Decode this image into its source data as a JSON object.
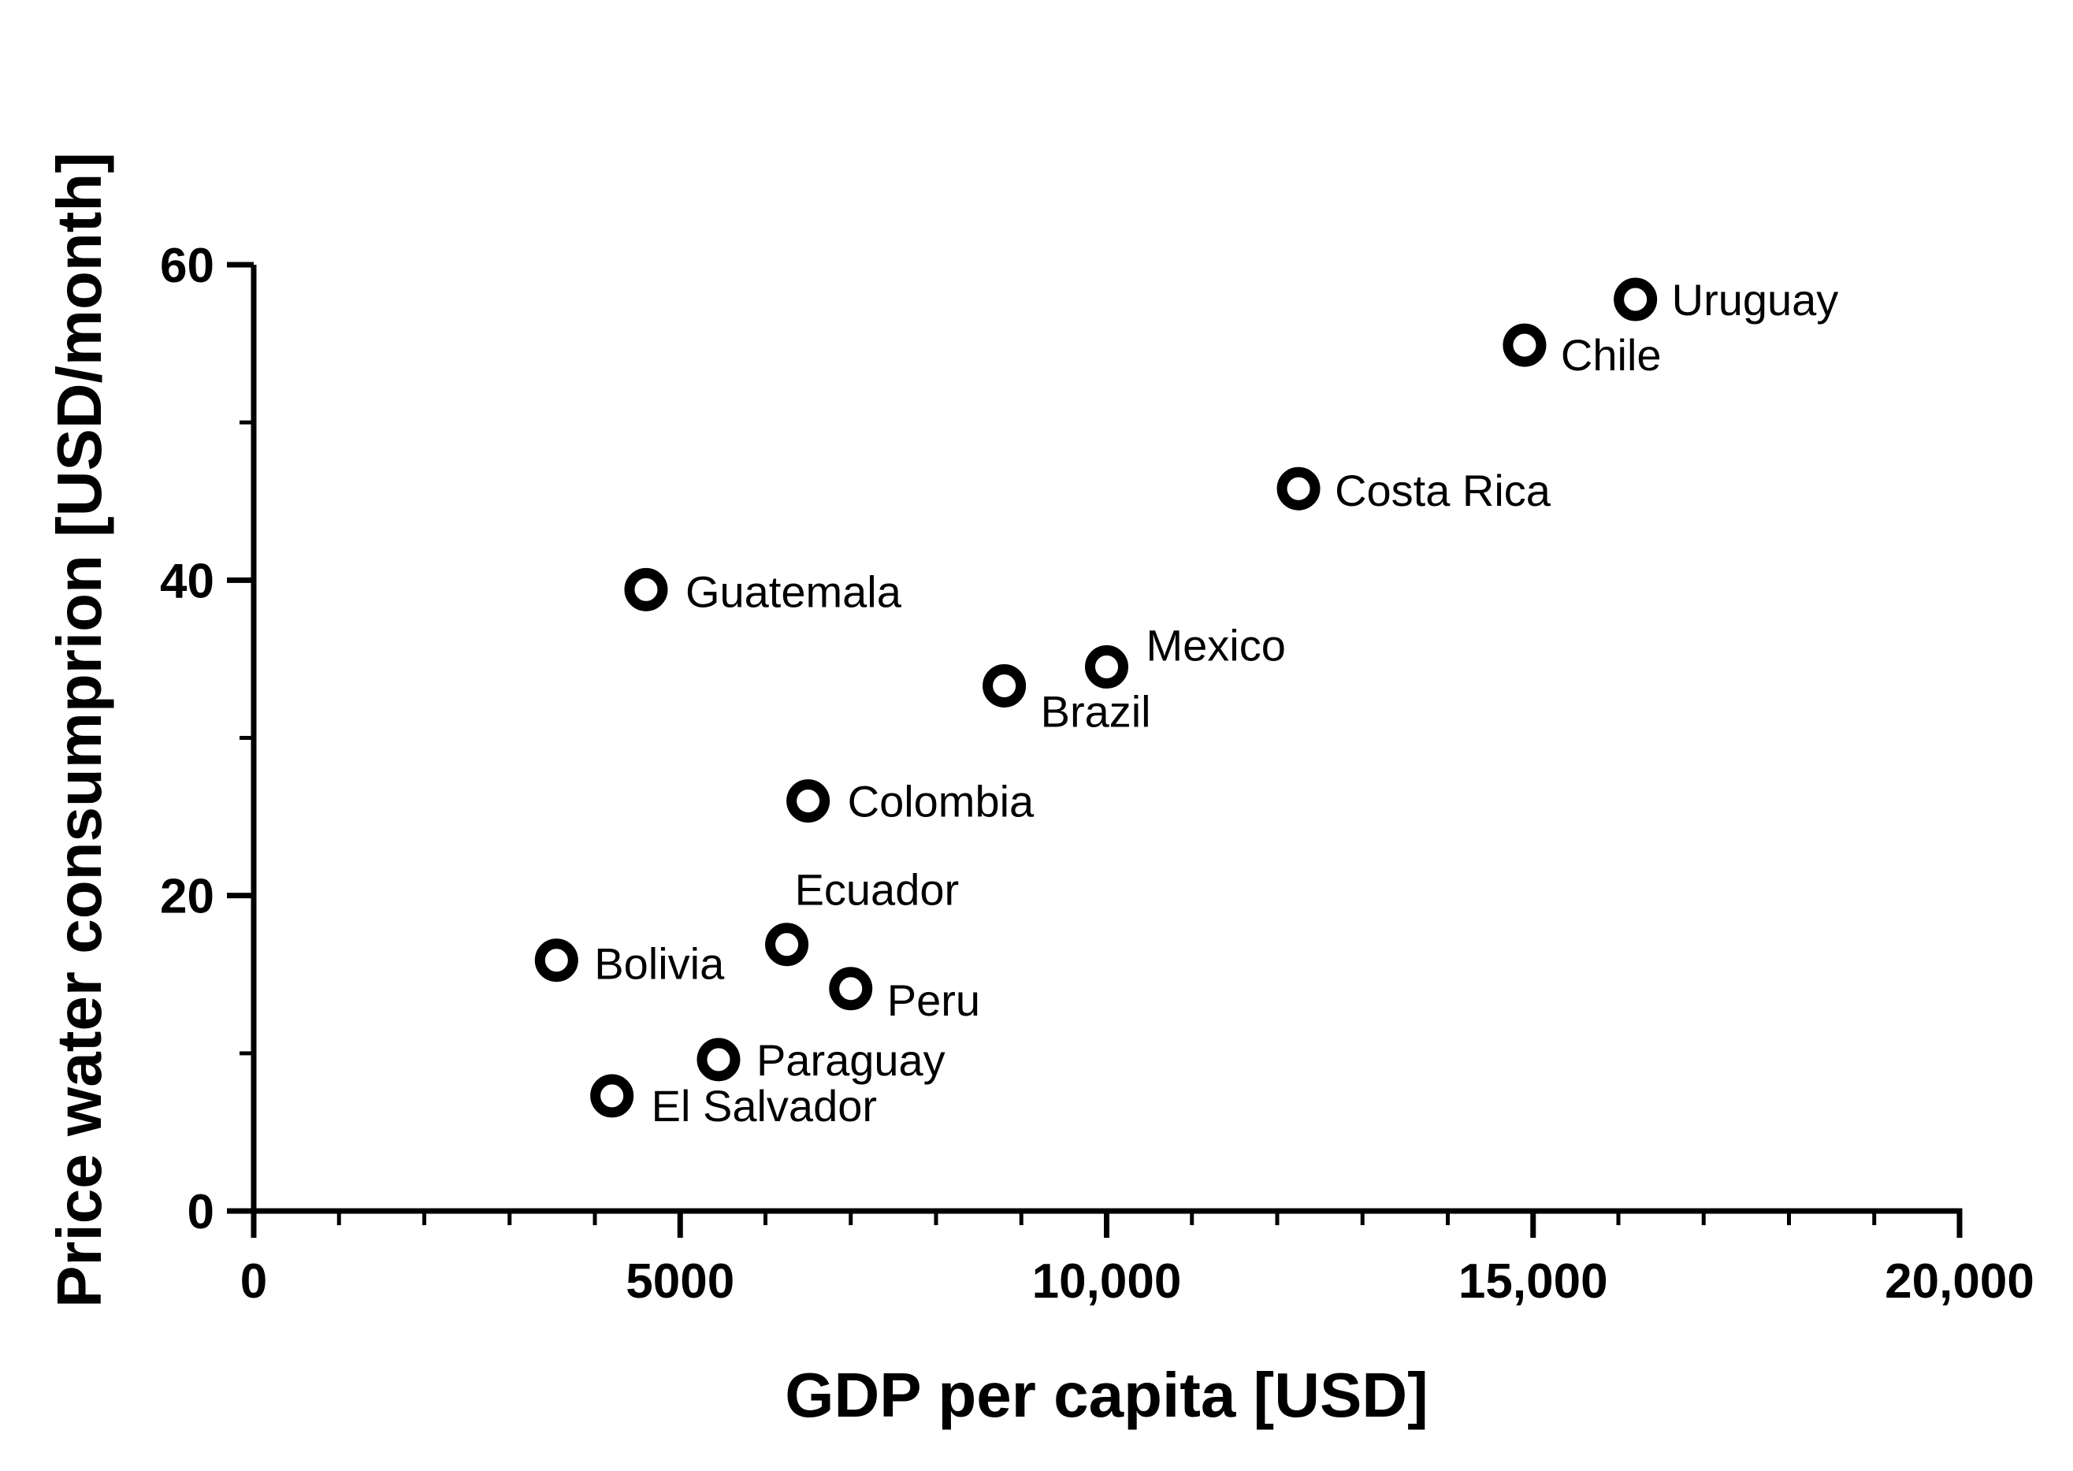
{
  "chart_data": {
    "type": "scatter",
    "title": "",
    "xlabel": "GDP per capita [USD]",
    "ylabel": "Price water consumprion [USD/month]",
    "xlim": [
      0,
      20000
    ],
    "ylim": [
      0,
      60
    ],
    "x_ticks": [
      0,
      5000,
      10000,
      15000,
      20000
    ],
    "x_tick_labels": [
      "0",
      "5000",
      "10,000",
      "15,000",
      "20,000"
    ],
    "x_minor_step": 1000,
    "y_ticks": [
      0,
      20,
      40,
      60
    ],
    "y_tick_labels": [
      "0",
      "20",
      "40",
      "60"
    ],
    "y_minor_step": 10,
    "grid": false,
    "legend": "none",
    "marker_color": "#000000",
    "points": [
      {
        "label": "Uruguay",
        "x": 16200,
        "y": 57.8
      },
      {
        "label": "Chile",
        "x": 14900,
        "y": 54.9
      },
      {
        "label": "Costa Rica",
        "x": 12250,
        "y": 45.8
      },
      {
        "label": "Guatemala",
        "x": 4600,
        "y": 39.4
      },
      {
        "label": "Mexico",
        "x": 10000,
        "y": 34.5
      },
      {
        "label": "Brazil",
        "x": 8800,
        "y": 33.3
      },
      {
        "label": "Colombia",
        "x": 6500,
        "y": 26.0
      },
      {
        "label": "Ecuador",
        "x": 6250,
        "y": 16.9
      },
      {
        "label": "Bolivia",
        "x": 3550,
        "y": 15.9
      },
      {
        "label": "Peru",
        "x": 7000,
        "y": 14.1
      },
      {
        "label": "Paraguay",
        "x": 5450,
        "y": 9.6
      },
      {
        "label": "El Salvador",
        "x": 4200,
        "y": 7.3
      }
    ]
  }
}
